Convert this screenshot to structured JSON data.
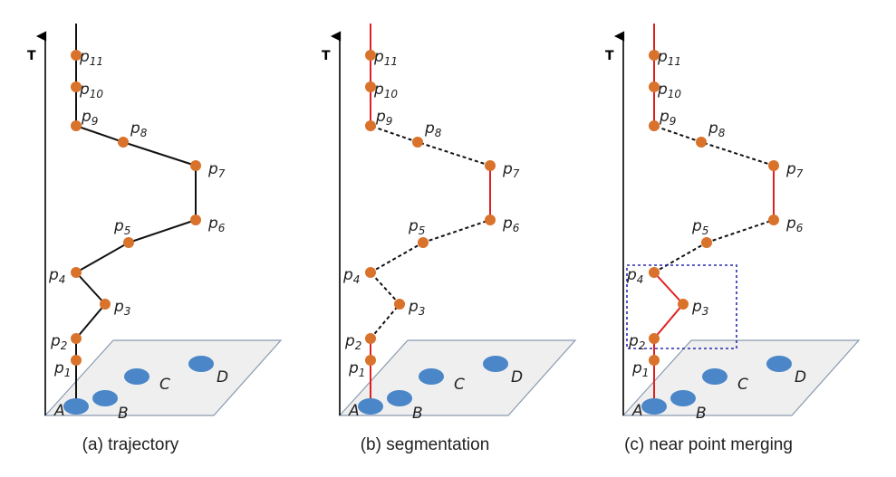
{
  "axis_label": "T",
  "captions": [
    "(a) trajectory",
    "(b) segmentation",
    "(c) near point merging"
  ],
  "site_labels": [
    "A",
    "B",
    "C",
    "D"
  ],
  "point_labels": [
    {
      "base": "p",
      "sub": "1"
    },
    {
      "base": "p",
      "sub": "2"
    },
    {
      "base": "p",
      "sub": "3"
    },
    {
      "base": "p",
      "sub": "4"
    },
    {
      "base": "p",
      "sub": "5"
    },
    {
      "base": "p",
      "sub": "6"
    },
    {
      "base": "p",
      "sub": "7"
    },
    {
      "base": "p",
      "sub": "8"
    },
    {
      "base": "p",
      "sub": "9"
    },
    {
      "base": "p",
      "sub": "10"
    },
    {
      "base": "p",
      "sub": "11"
    }
  ],
  "colors": {
    "point": "#d9722b",
    "site": "#4a86c8",
    "plane_fill": "#efefef",
    "plane_stroke": "#8a9bb0",
    "trajectory": "#111111",
    "segment_red": "#e02020",
    "dashed": "#111111",
    "merge_box": "#2a2ab0"
  },
  "panels": [
    {
      "name": "trajectory",
      "segment_styles": [
        "solid",
        "solid",
        "solid",
        "solid",
        "solid",
        "solid",
        "solid",
        "solid",
        "solid",
        "solid",
        "solid"
      ],
      "merge_box": false
    },
    {
      "name": "segmentation",
      "segment_styles": [
        "red",
        "red",
        "dashed",
        "dashed",
        "dashed",
        "dashed",
        "red",
        "dashed",
        "dashed",
        "red",
        "red"
      ],
      "merge_box": false
    },
    {
      "name": "near-point-merging",
      "segment_styles": [
        "red",
        "red",
        "red",
        "red",
        "dashed",
        "dashed",
        "red",
        "dashed",
        "dashed",
        "red",
        "red"
      ],
      "merge_box": true
    }
  ]
}
